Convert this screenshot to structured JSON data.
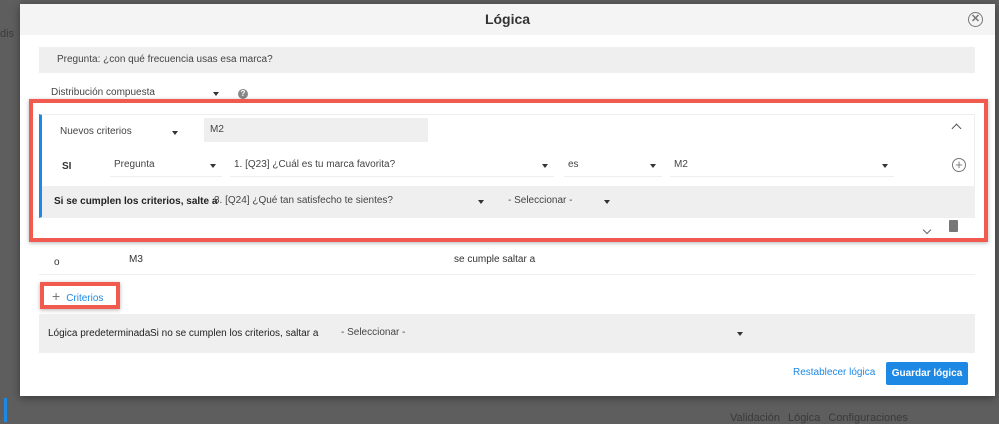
{
  "background": {
    "left_text": "dis",
    "bottom_tabs": [
      "Validación",
      "Lógica",
      "Configuraciones"
    ]
  },
  "modal": {
    "title": "Lógica",
    "question_label": "Pregunta: ¿con qué frecuencia usas esa marca?",
    "distribution": {
      "value": "Distribución compuesta",
      "help_icon": "question-circle-icon"
    },
    "criteria_block": {
      "type_select": "Nuevos criterios",
      "name_input": "M2",
      "condition": {
        "prefix": "SI",
        "source": "Pregunta",
        "question": "1. [Q23] ¿Cuál es tu marca favorita?",
        "operator": "es",
        "value": "M2"
      },
      "jump": {
        "label": "Si se cumplen los criterios, salte a",
        "target": "3. [Q24] ¿Qué tan satisfecho te sientes?",
        "secondary": "- Seleccionar -"
      }
    },
    "collapsed_row": {
      "connector": "o",
      "name": "M3",
      "text": "se cumple saltar a"
    },
    "add_criteria_label": "Criterios",
    "default_logic": {
      "label": "Lógica predeterminada",
      "text": "Si no se cumplen los criterios, saltar a",
      "select": "- Seleccionar -"
    },
    "reset_button": "Restablecer lógica",
    "save_button": "Guardar lógica",
    "colors": {
      "accent": "#1e88e5",
      "highlight": "#f05a4f",
      "active_bar": "#1e88e5"
    }
  }
}
